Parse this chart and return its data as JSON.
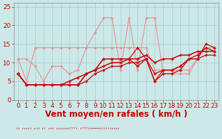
{
  "background_color": "#cce8e8",
  "grid_color": "#aacccc",
  "xlabel": "Vent moyen/en rafales ( km/h )",
  "xlabel_color": "#cc0000",
  "xlim": [
    -0.5,
    23.5
  ],
  "ylim": [
    0,
    26
  ],
  "yticks": [
    0,
    5,
    10,
    15,
    20,
    25
  ],
  "xticks": [
    0,
    1,
    2,
    3,
    4,
    5,
    6,
    7,
    8,
    9,
    10,
    11,
    12,
    13,
    14,
    15,
    16,
    17,
    18,
    19,
    20,
    21,
    22,
    23
  ],
  "pink_step_x": [
    0,
    1,
    2,
    3,
    4,
    5,
    6,
    7,
    8,
    9,
    10,
    11,
    12,
    13,
    14,
    15,
    16,
    17,
    18,
    19,
    20,
    21,
    22,
    23
  ],
  "pink_step_y": [
    11,
    5,
    14,
    14,
    14,
    14,
    14,
    14,
    14,
    14,
    14,
    14,
    14,
    14,
    14,
    14,
    8,
    8,
    8,
    8,
    8,
    11,
    14,
    13
  ],
  "pink_gust_x": [
    0,
    1,
    2,
    3,
    4,
    5,
    6,
    7,
    8,
    9,
    10,
    11,
    12,
    13,
    14,
    15,
    16,
    17,
    18,
    19,
    20,
    21,
    22,
    23
  ],
  "pink_gust_y": [
    11,
    11,
    9,
    5,
    9,
    9,
    7,
    8,
    14,
    18,
    22,
    22,
    8,
    22,
    8,
    22,
    22,
    7,
    7,
    7,
    7,
    11,
    14,
    14
  ],
  "red_line1_x": [
    0,
    1,
    2,
    3,
    4,
    5,
    6,
    7,
    8,
    9,
    10,
    11,
    12,
    13,
    14,
    15,
    16,
    17,
    18,
    19,
    20,
    21,
    22,
    23
  ],
  "red_line1_y": [
    7,
    4,
    4,
    4,
    4,
    4,
    4,
    4,
    7,
    8,
    11,
    11,
    11,
    11,
    14,
    11,
    5,
    7,
    7,
    8,
    11,
    11,
    15,
    14
  ],
  "red_line2_x": [
    0,
    1,
    2,
    3,
    4,
    5,
    6,
    7,
    8,
    9,
    10,
    11,
    12,
    13,
    14,
    15,
    16,
    17,
    18,
    19,
    20,
    21,
    22,
    23
  ],
  "red_line2_y": [
    7,
    4,
    4,
    4,
    4,
    4,
    4,
    4,
    7,
    8,
    11,
    11,
    11,
    11,
    9,
    11,
    5,
    8,
    8,
    9,
    11,
    12,
    14,
    13
  ],
  "red_line3_x": [
    0,
    1,
    2,
    3,
    4,
    5,
    6,
    7,
    8,
    9,
    10,
    11,
    12,
    13,
    14,
    15,
    16,
    17,
    18,
    19,
    20,
    21,
    22,
    23
  ],
  "red_line3_y": [
    7,
    4,
    4,
    4,
    4,
    4,
    5,
    6,
    7,
    8,
    9,
    10,
    10,
    11,
    11,
    12,
    10,
    11,
    11,
    12,
    12,
    13,
    13,
    13
  ],
  "red_line4_x": [
    0,
    1,
    2,
    3,
    4,
    5,
    6,
    7,
    8,
    9,
    10,
    11,
    12,
    13,
    14,
    15,
    16,
    17,
    18,
    19,
    20,
    21,
    22,
    23
  ],
  "red_line4_y": [
    7,
    4,
    4,
    4,
    4,
    4,
    4,
    4,
    5,
    7,
    8,
    9,
    9,
    10,
    10,
    11,
    7,
    8,
    8,
    9,
    11,
    11,
    12,
    12
  ],
  "light_pink": "#e89090",
  "dark_red": "#cc0000",
  "tick_color": "#cc0000",
  "tick_fontsize": 6.5,
  "xlabel_fontsize": 8.5
}
